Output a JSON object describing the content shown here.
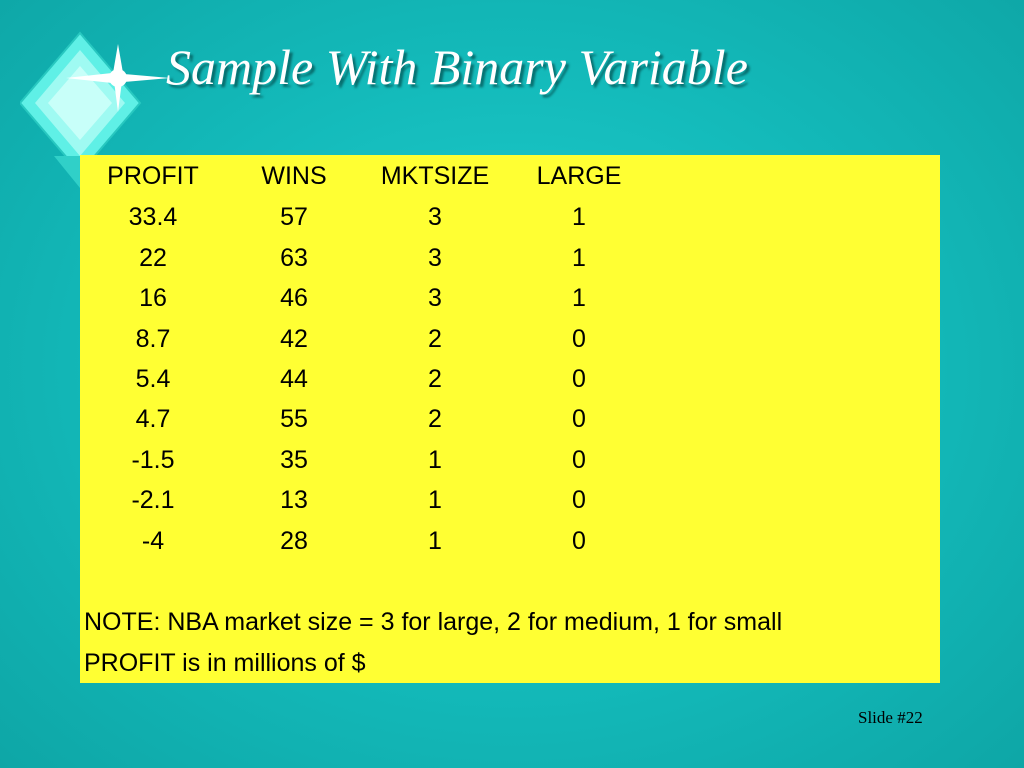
{
  "slide": {
    "title": "Sample With Binary Variable",
    "number_label": "Slide #22"
  },
  "table": {
    "columns": [
      "PROFIT",
      "WINS",
      "MKTSIZE",
      "LARGE"
    ],
    "rows": [
      [
        "33.4",
        "57",
        "3",
        "1"
      ],
      [
        "22",
        "63",
        "3",
        "1"
      ],
      [
        "16",
        "46",
        "3",
        "1"
      ],
      [
        "8.7",
        "42",
        "2",
        "0"
      ],
      [
        "5.4",
        "44",
        "2",
        "0"
      ],
      [
        "4.7",
        "55",
        "2",
        "0"
      ],
      [
        "-1.5",
        "35",
        "1",
        "0"
      ],
      [
        "-2.1",
        "13",
        "1",
        "0"
      ],
      [
        "-4",
        "28",
        "1",
        "0"
      ]
    ],
    "notes": [
      "NOTE: NBA market size = 3 for large, 2 for medium, 1 for small",
      "PROFIT is in millions of $"
    ]
  },
  "colors": {
    "background": "#13b9b9",
    "table_background": "#ffff33",
    "title_text": "#ffffff"
  },
  "icons": {
    "logo": "diamond-sparkle-icon"
  }
}
